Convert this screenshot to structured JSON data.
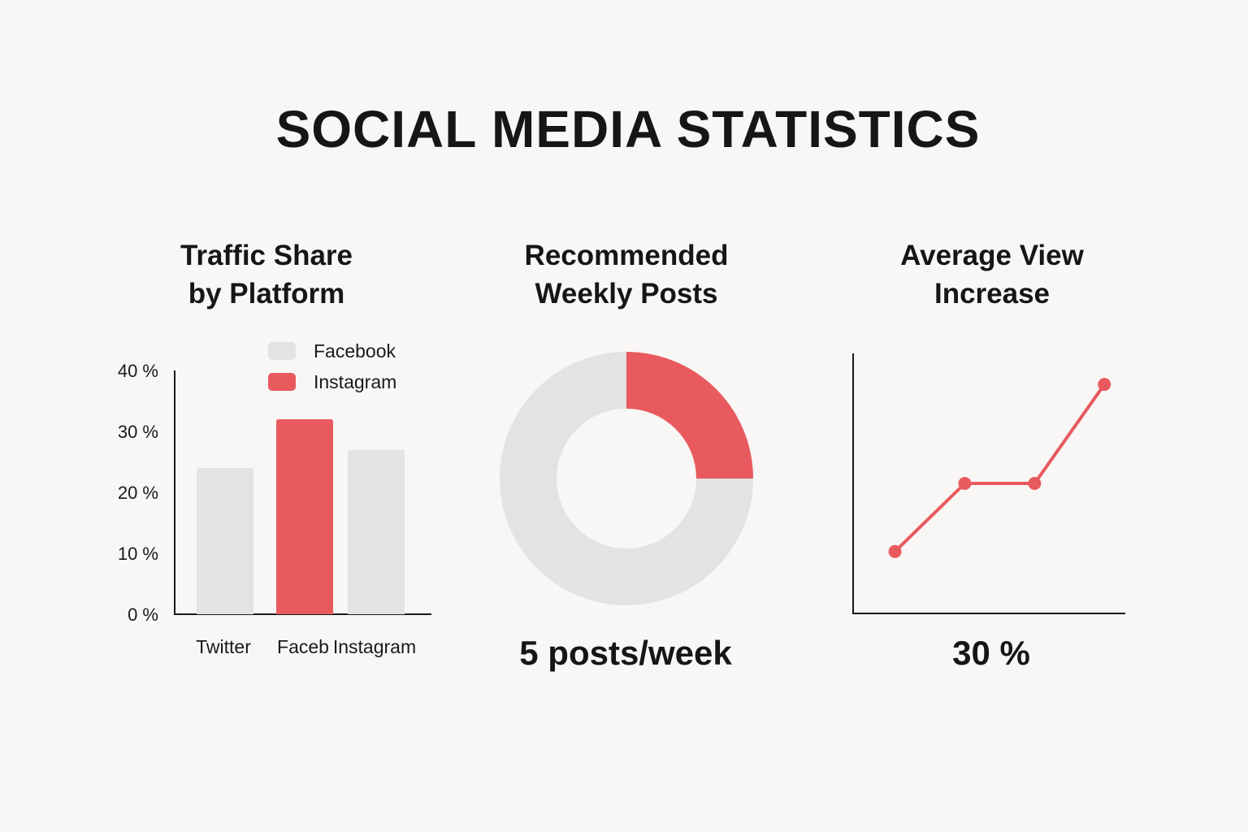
{
  "title": "SOCIAL MEDIA STATISTICS",
  "colors": {
    "accent": "#e85a5e",
    "muted": "#e4e3e1",
    "axis": "#1a1a1a"
  },
  "chart_data": [
    {
      "type": "bar",
      "title_lines": [
        "Traffic Share",
        "by Platform"
      ],
      "categories": [
        "Twitter",
        "Faceb",
        "Instagram"
      ],
      "values": [
        24,
        32,
        27
      ],
      "highlight_index": 1,
      "ylim": [
        0,
        40
      ],
      "yticks": [
        0,
        10,
        20,
        30,
        40
      ],
      "ytick_labels": [
        "0 %",
        "10 %",
        "20 %",
        "30 %",
        "40 %"
      ],
      "legend": [
        {
          "label": "Facebook",
          "color": "#e4e3e1"
        },
        {
          "label": "Instagram",
          "color": "#e85a5e"
        }
      ],
      "legend_position": "top-right",
      "grid": false
    },
    {
      "type": "pie",
      "style": "donut",
      "title_lines": [
        "Recommended",
        "Weekly Posts"
      ],
      "slices": [
        {
          "value": 25,
          "color": "#e85a5e"
        },
        {
          "value": 75,
          "color": "#e4e3e1"
        }
      ],
      "value_label": "5 posts/week"
    },
    {
      "type": "line",
      "title_lines": [
        "Average View",
        "Increase"
      ],
      "x": [
        1,
        2,
        3,
        4
      ],
      "y": [
        10,
        21,
        21,
        37
      ],
      "ylim": [
        0,
        42
      ],
      "xlim": [
        0.4,
        4.3
      ],
      "grid": false,
      "value_label": "30 %"
    }
  ]
}
